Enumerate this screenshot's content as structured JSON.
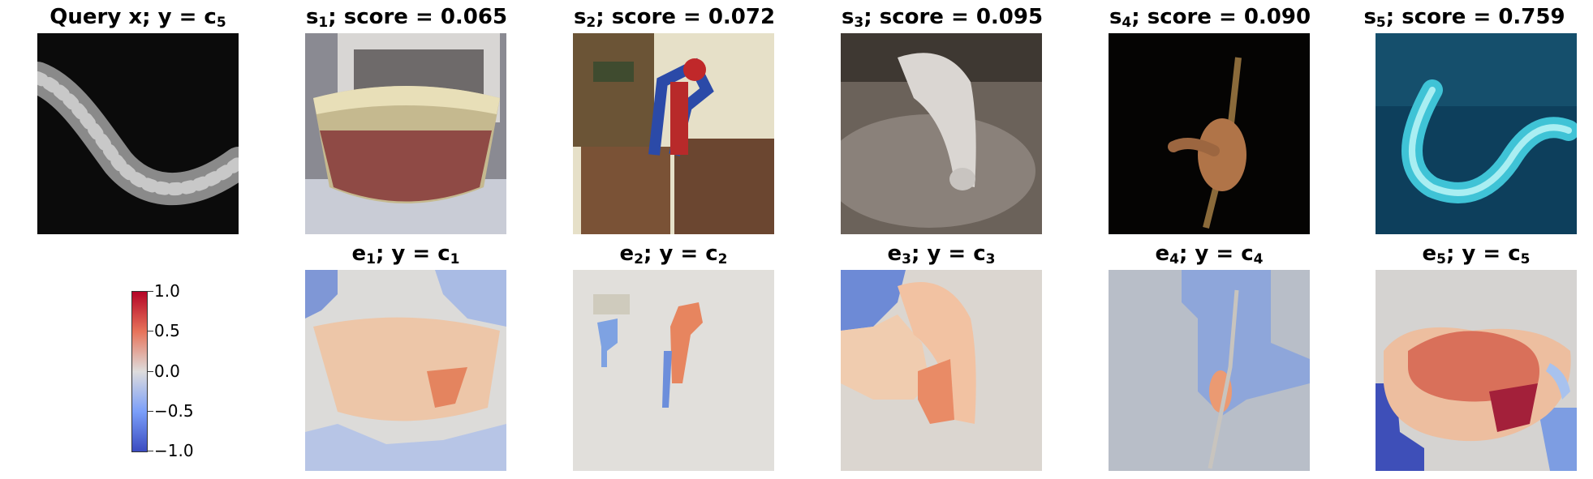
{
  "query": {
    "label": "Query x; y = c",
    "class_sub": "5",
    "image": "grayscale eel"
  },
  "support": [
    {
      "sub": "1",
      "label_mid": "; score = ",
      "score": "0.065",
      "image": "bowl of fruit salad"
    },
    {
      "sub": "2",
      "label_mid": "; score = ",
      "score": "0.072",
      "image": "spider-man figure on crates"
    },
    {
      "sub": "3",
      "label_mid": "; score = ",
      "score": "0.095",
      "image": "ferret on couch"
    },
    {
      "sub": "4",
      "label_mid": "; score = ",
      "score": "0.090",
      "image": "hand playing guitar"
    },
    {
      "sub": "5",
      "label_mid": "; score = ",
      "score": "0.759",
      "image": "blue eel"
    }
  ],
  "explanations": [
    {
      "sub": "1",
      "label_mid": "; y = c",
      "class_sub": "1"
    },
    {
      "sub": "2",
      "label_mid": "; y = c",
      "class_sub": "2"
    },
    {
      "sub": "3",
      "label_mid": "; y = c",
      "class_sub": "3"
    },
    {
      "sub": "4",
      "label_mid": "; y = c",
      "class_sub": "4"
    },
    {
      "sub": "5",
      "label_mid": "; y = c",
      "class_sub": "5"
    }
  ],
  "colorbar": {
    "colormap": "coolwarm",
    "ticks": [
      "1.0",
      "0.5",
      "0.0",
      "−0.5",
      "−1.0"
    ],
    "colors": {
      "max": "#b40426",
      "mid": "#dddcdc",
      "min": "#3b4cc0"
    }
  }
}
